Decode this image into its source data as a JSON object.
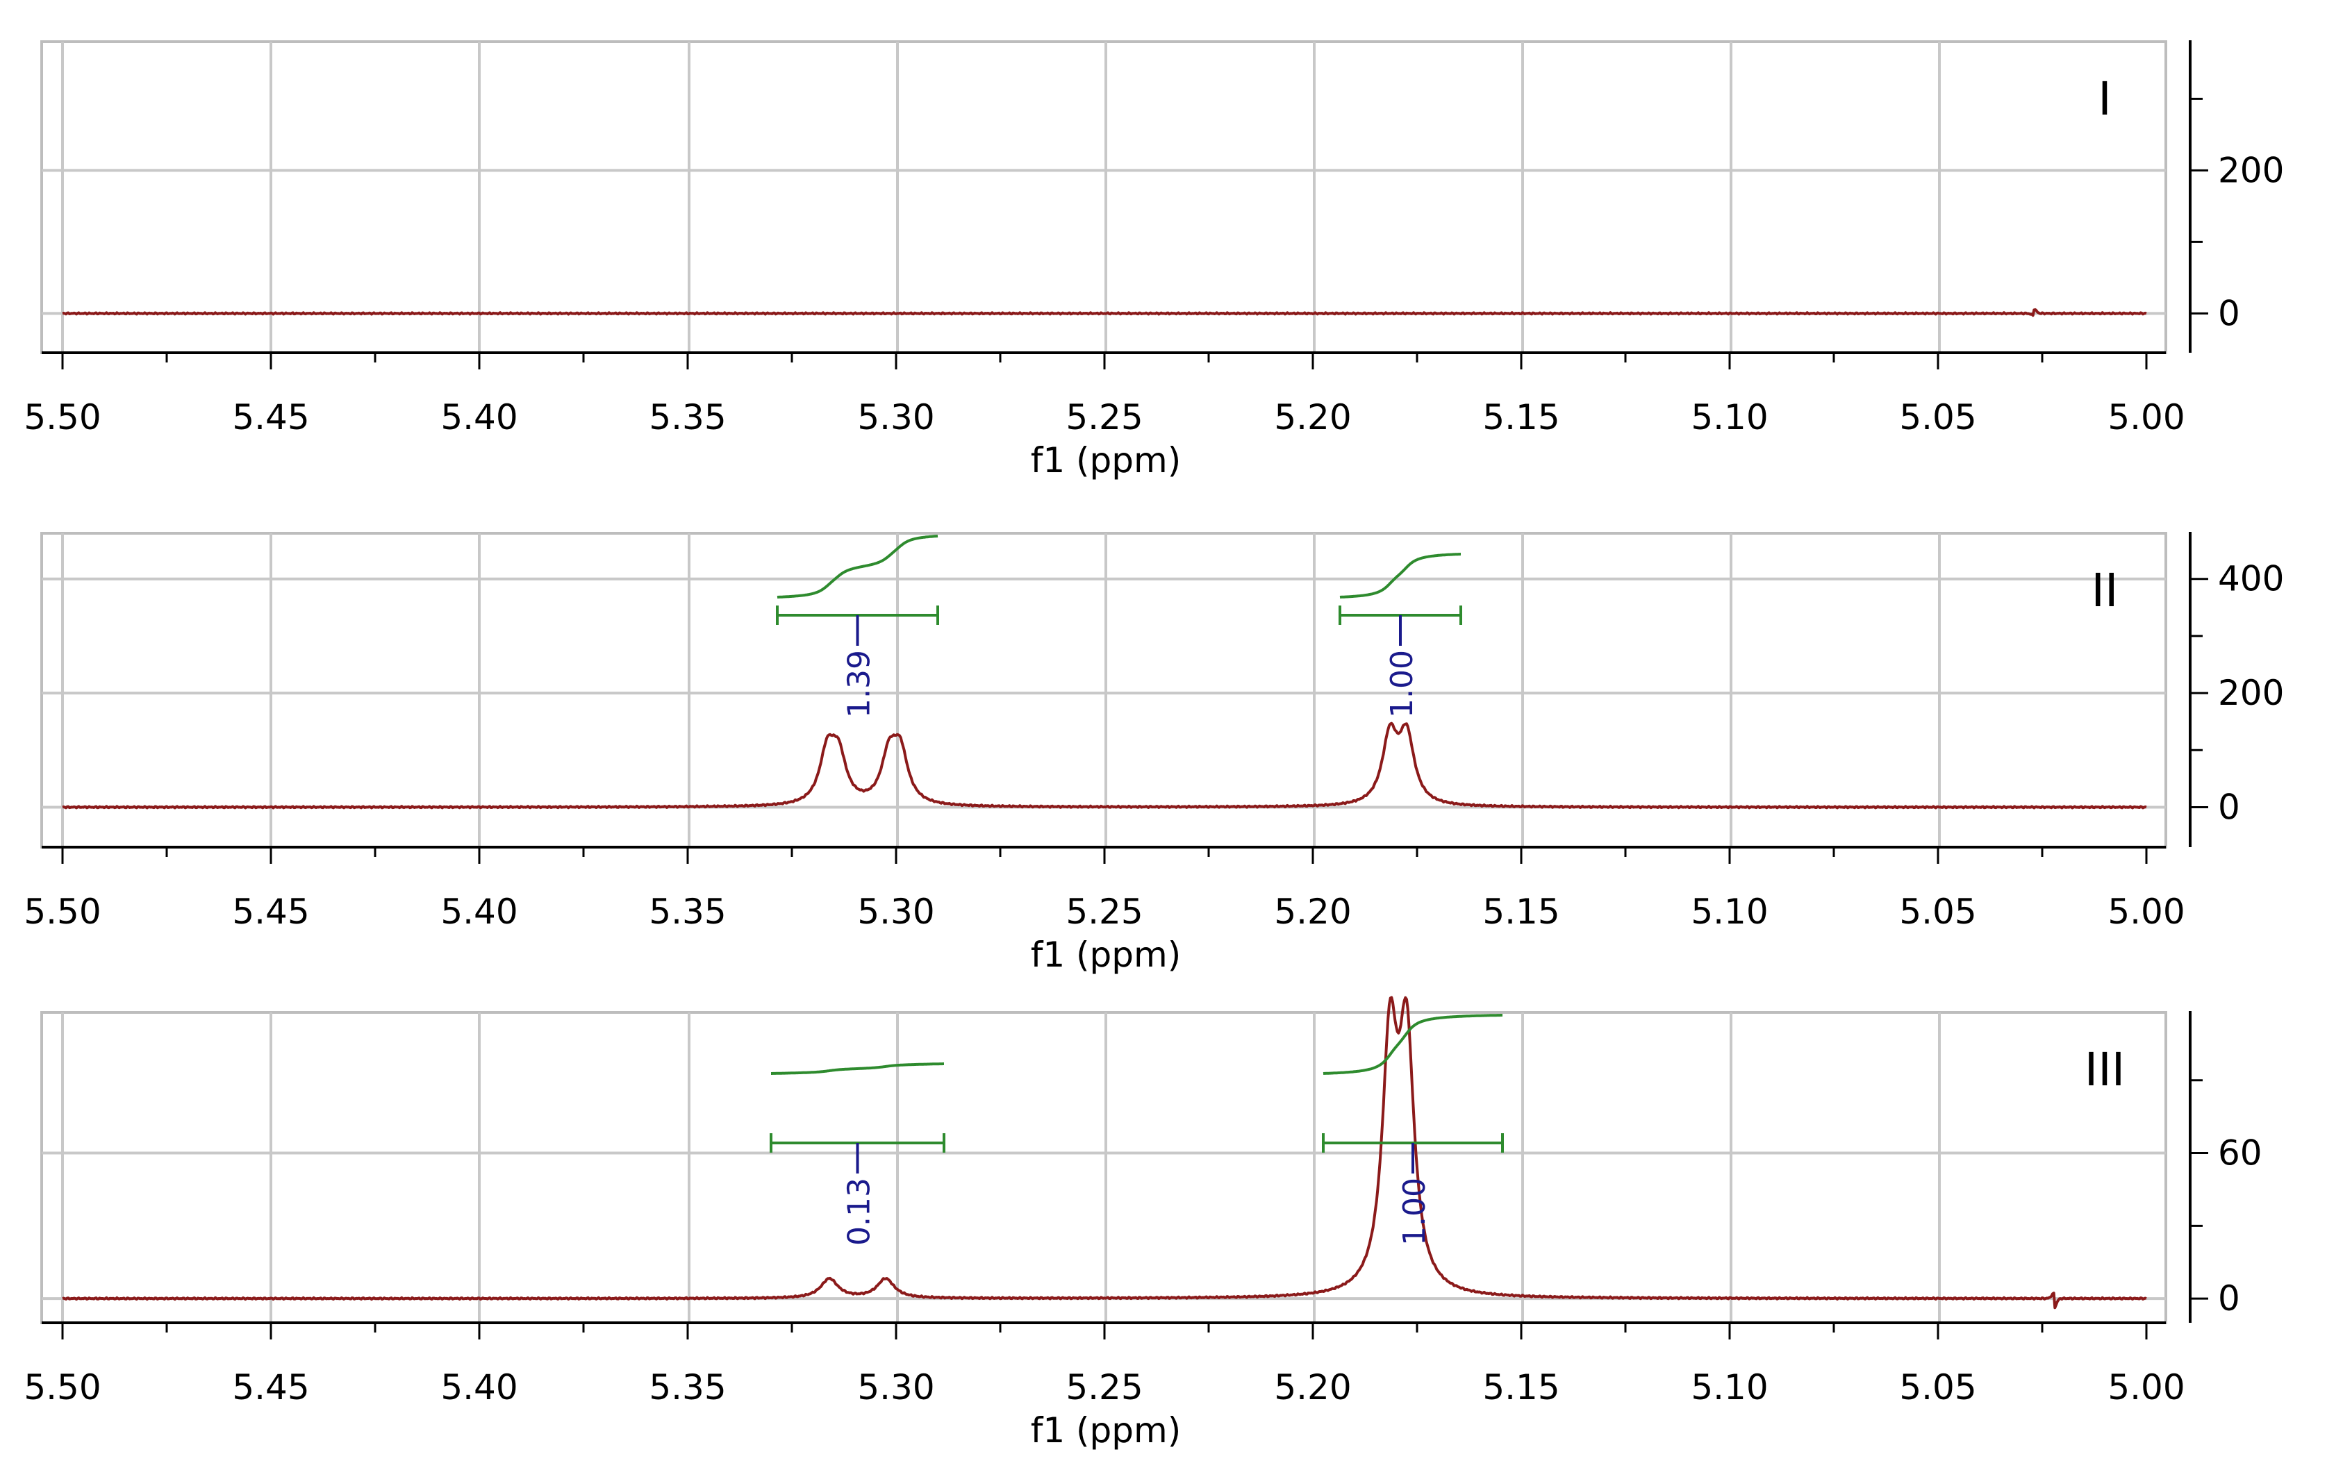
{
  "chart_data": [
    {
      "type": "line",
      "panel_label": "I",
      "xlabel": "f1 (ppm)",
      "xlim": [
        5.5,
        5.0
      ],
      "x_ticks": [
        "5.50",
        "5.45",
        "5.40",
        "5.35",
        "5.30",
        "5.25",
        "5.20",
        "5.15",
        "5.10",
        "5.05",
        "5.00"
      ],
      "ylim": [
        -55,
        380
      ],
      "y_ticks": [
        "200",
        "0"
      ],
      "grid": true,
      "peaks": [],
      "glitches": [
        {
          "x": 5.027,
          "amp": 6
        }
      ],
      "integrals": []
    },
    {
      "type": "line",
      "panel_label": "II",
      "xlabel": "f1 (ppm)",
      "xlim": [
        5.5,
        5.0
      ],
      "x_ticks": [
        "5.50",
        "5.45",
        "5.40",
        "5.35",
        "5.30",
        "5.25",
        "5.20",
        "5.15",
        "5.10",
        "5.05",
        "5.00"
      ],
      "ylim": [
        -70,
        480
      ],
      "y_ticks": [
        "400",
        "200",
        "0"
      ],
      "grid": true,
      "peaks": [
        {
          "x": 5.3165,
          "height": 88,
          "width": 0.0022
        },
        {
          "x": 5.3138,
          "height": 80,
          "width": 0.0022
        },
        {
          "x": 5.3017,
          "height": 80,
          "width": 0.0022
        },
        {
          "x": 5.299,
          "height": 88,
          "width": 0.0022
        },
        {
          "x": 5.1815,
          "height": 118,
          "width": 0.0022
        },
        {
          "x": 5.1775,
          "height": 118,
          "width": 0.0022
        }
      ],
      "glitches": [],
      "integrals": [
        {
          "from": 5.3285,
          "to": 5.29,
          "value": "1.39"
        },
        {
          "from": 5.1935,
          "to": 5.1645,
          "value": "1.00"
        }
      ]
    },
    {
      "type": "line",
      "panel_label": "III",
      "xlabel": "f1 (ppm)",
      "xlim": [
        5.5,
        5.0
      ],
      "x_ticks": [
        "5.50",
        "5.45",
        "5.40",
        "5.35",
        "5.30",
        "5.25",
        "5.20",
        "5.15",
        "5.10",
        "5.05",
        "5.00"
      ],
      "ylim": [
        -10,
        118
      ],
      "y_ticks": [
        "60",
        "0"
      ],
      "grid": true,
      "peaks": [
        {
          "x": 5.316,
          "height": 8,
          "width": 0.0025
        },
        {
          "x": 5.3025,
          "height": 8,
          "width": 0.0025
        },
        {
          "x": 5.1815,
          "height": 100,
          "width": 0.0022
        },
        {
          "x": 5.1775,
          "height": 100,
          "width": 0.0022
        }
      ],
      "glitches": [
        {
          "x": 5.0222,
          "amp": -4
        }
      ],
      "integrals": [
        {
          "from": 5.33,
          "to": 5.2885,
          "value": "0.13"
        },
        {
          "from": 5.1975,
          "to": 5.1545,
          "value": "1.00"
        }
      ]
    }
  ],
  "colors": {
    "spectrum": "#8b1a1a",
    "integral": "#2e8b2e",
    "integral_label": "#1a1a8c",
    "grid": "#c8c8c8",
    "frame": "#bdbdbd",
    "axis": "#000000"
  }
}
